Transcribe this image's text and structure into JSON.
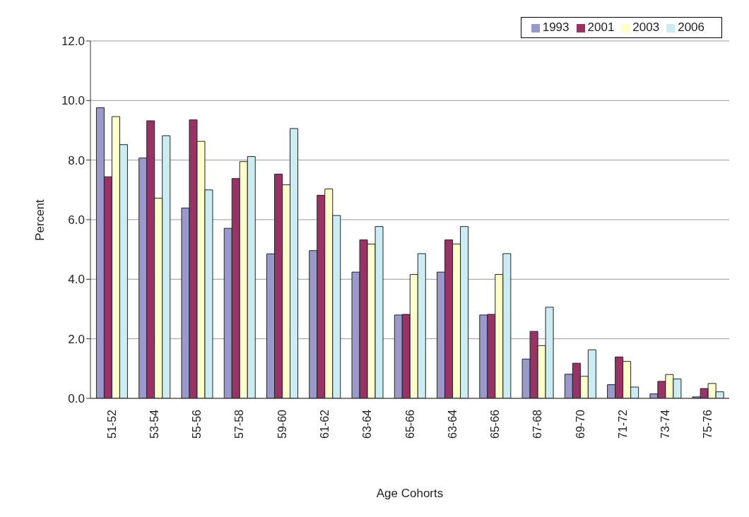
{
  "chart_data": {
    "type": "bar",
    "xlabel": "Age Cohorts",
    "ylabel": "Percent",
    "categories": [
      "51-52",
      "53-54",
      "55-56",
      "57-58",
      "59-60",
      "61-62",
      "63-64",
      "65-66",
      "63-64",
      "65-66",
      "67-68",
      "69-70",
      "71-72",
      "73-74",
      "75-76"
    ],
    "series": [
      {
        "name": "1993",
        "color": "#9999cc",
        "values": [
          9.76,
          8.07,
          6.39,
          5.71,
          4.85,
          4.96,
          4.24,
          2.8,
          4.24,
          2.8,
          1.32,
          0.81,
          0.46,
          0.15,
          0.05
        ]
      },
      {
        "name": "2001",
        "color": "#993366",
        "values": [
          7.44,
          9.32,
          9.35,
          7.38,
          7.53,
          6.82,
          5.32,
          2.82,
          5.32,
          2.82,
          2.25,
          1.18,
          1.39,
          0.57,
          0.33
        ]
      },
      {
        "name": "2003",
        "color": "#ffffcc",
        "values": [
          9.46,
          6.72,
          8.63,
          7.95,
          7.17,
          7.03,
          5.18,
          4.16,
          5.18,
          4.16,
          1.77,
          0.74,
          1.24,
          0.8,
          0.5
        ]
      },
      {
        "name": "2006",
        "color": "#ccecf4",
        "values": [
          8.52,
          8.82,
          7.0,
          8.12,
          9.06,
          6.14,
          5.77,
          4.86,
          5.77,
          4.86,
          3.06,
          1.63,
          0.38,
          0.65,
          0.22
        ]
      }
    ],
    "ylim": [
      0,
      12
    ],
    "yticks": [
      {
        "value": 0,
        "label": "0.0"
      },
      {
        "value": 2,
        "label": "2.0"
      },
      {
        "value": 4,
        "label": "4.0"
      },
      {
        "value": 6,
        "label": "6.0"
      },
      {
        "value": 8,
        "label": "8.0"
      },
      {
        "value": 10,
        "label": "10.0"
      },
      {
        "value": 12,
        "label": "12.0"
      }
    ],
    "grid": "y",
    "legend": "top right"
  }
}
